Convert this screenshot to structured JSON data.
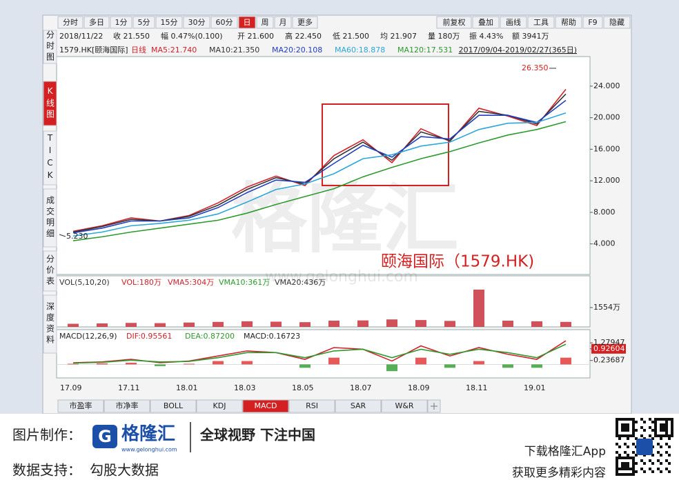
{
  "toolbar": {
    "left": [
      "分时",
      "多日",
      "1分",
      "5分",
      "15分",
      "30分",
      "60分",
      "日",
      "周",
      "月",
      "更多"
    ],
    "active": 7,
    "right": [
      "前复权",
      "叠加",
      "画线",
      "工具",
      "帮助",
      "F9",
      "隐藏"
    ]
  },
  "info": [
    "2018/11/22",
    "收 21.550",
    "幅 0.47%(0.100)",
    "开 21.600",
    "高 22.450",
    "低 21.500",
    "均 21.907",
    "量 180万",
    "振 4.43%",
    "额 3941万"
  ],
  "sidebar": {
    "items": [
      "分时图",
      "K线图",
      "TICK",
      "成交明细",
      "分价表",
      "深度资料"
    ],
    "active": 1
  },
  "chart_data": [
    {
      "type": "line",
      "symbol": "1579.HK[颐海国际]",
      "period": "日线",
      "range": "2017/09/04-2019/02/27(365日)",
      "title": "颐海国际（1579.HK)",
      "high_label": "26.350",
      "low_label": "5.230",
      "categories": [
        "17.09",
        null,
        "17.11",
        null,
        "18.01",
        null,
        "18.03",
        null,
        "18.05",
        null,
        "18.07",
        null,
        "18.09",
        null,
        "18.11",
        null,
        "19.01",
        null
      ],
      "series": [
        {
          "name": "MA5:21.740",
          "color": "#d0202a",
          "values": [
            5.6,
            6.3,
            7.3,
            6.9,
            7.6,
            9.2,
            11.2,
            12.6,
            11.4,
            15.2,
            17.2,
            14.3,
            18.6,
            17.0,
            21.2,
            20.2,
            19.0,
            23.6
          ]
        },
        {
          "name": "MA10:21.350",
          "color": "#333333",
          "values": [
            5.5,
            6.2,
            7.1,
            6.9,
            7.5,
            8.9,
            10.9,
            12.4,
            11.6,
            14.8,
            16.9,
            14.6,
            18.2,
            17.1,
            20.8,
            20.3,
            19.2,
            23.0
          ]
        },
        {
          "name": "MA20:20.108",
          "color": "#1f3fbf",
          "values": [
            5.4,
            6.0,
            6.9,
            6.9,
            7.3,
            8.6,
            10.5,
            12.1,
            11.8,
            14.2,
            16.5,
            15.0,
            17.6,
            17.3,
            20.3,
            20.3,
            19.4,
            22.2
          ]
        },
        {
          "name": "MA60:18.878",
          "color": "#2aa6d8",
          "values": [
            5.0,
            5.5,
            6.3,
            6.6,
            7.0,
            7.8,
            9.3,
            10.9,
            11.6,
            12.9,
            14.8,
            15.3,
            16.4,
            16.9,
            18.5,
            19.3,
            19.4,
            20.6
          ]
        },
        {
          "name": "MA120:17.531",
          "color": "#2c9a2c",
          "values": [
            4.4,
            4.9,
            5.5,
            6.0,
            6.5,
            7.0,
            7.9,
            9.0,
            10.0,
            11.0,
            12.5,
            13.7,
            14.8,
            15.7,
            16.8,
            17.8,
            18.5,
            19.5
          ]
        }
      ],
      "ylim": [
        0.3,
        27.4
      ],
      "yticks": [
        {
          "value": 4,
          "label": "4.000"
        },
        {
          "value": 8,
          "label": "8.000"
        },
        {
          "value": 12,
          "label": "12.000"
        },
        {
          "value": 16,
          "label": "16.000"
        },
        {
          "value": 20,
          "label": "20.000"
        },
        {
          "value": 24,
          "label": "24.000"
        }
      ]
    },
    {
      "type": "bar",
      "legend": [
        "VOL(5,10,20)",
        "VOL:180万",
        "VMA5:304万",
        "VMA10:361万",
        "VMA20:436万"
      ],
      "legend_colors": [
        "#333333",
        "#d0202a",
        "#d0202a",
        "#2c9a2c",
        "#333333"
      ],
      "values": [
        250,
        280,
        320,
        300,
        350,
        400,
        450,
        420,
        380,
        500,
        520,
        600,
        550,
        480,
        3000,
        500,
        450,
        400
      ],
      "color": "#c8323c",
      "ylim": [
        0,
        3885
      ],
      "yticks": [
        {
          "value": 1554,
          "label": "1554万"
        }
      ]
    },
    {
      "type": "line",
      "legend": "MACD(12,26,9)",
      "series": [
        {
          "name": "DIF:0.95561",
          "color": "#d0202a",
          "values": [
            0.1,
            0.15,
            0.3,
            0.1,
            0.2,
            0.5,
            0.8,
            0.7,
            0.3,
            1.0,
            0.9,
            0.2,
            1.1,
            0.5,
            1.0,
            0.6,
            0.3,
            1.4
          ]
        },
        {
          "name": "DEA:0.87200",
          "color": "#2c9a2c",
          "values": [
            0.08,
            0.12,
            0.25,
            0.15,
            0.18,
            0.4,
            0.7,
            0.7,
            0.4,
            0.8,
            0.9,
            0.4,
            0.9,
            0.6,
            0.9,
            0.7,
            0.4,
            1.2
          ]
        }
      ],
      "bars": {
        "name": "MACD:0.16723",
        "up_color": "#e03030",
        "down_color": "#2c9a2c",
        "values": [
          0.04,
          0.06,
          0.1,
          -0.1,
          0.04,
          0.2,
          0.2,
          0,
          -0.2,
          0.4,
          0,
          -0.4,
          0.4,
          -0.2,
          0.2,
          -0.2,
          -0.2,
          0.4
        ]
      },
      "ylim": [
        -0.8,
        1.9
      ],
      "yticks": [
        0.23687,
        0.92604,
        1.27947
      ],
      "highlight_tick": 1
    }
  ],
  "bottom_tabs": {
    "items": [
      "市盈率",
      "市净率",
      "BOLL",
      "KDJ",
      "MACD",
      "RSI",
      "SAR",
      "W&R"
    ],
    "active": 4
  },
  "watermark": {
    "title": "格隆汇",
    "url": "www.gelonghui.com"
  },
  "footer": {
    "made_by": "图片制作：",
    "logo": "格隆汇",
    "logo_url": "www.gelonghui.com",
    "slogan": "全球视野 下注中国",
    "data_by": "数据支持：",
    "data_source": "勾股大数据",
    "download": "下载格隆汇App",
    "more": "获取更多精彩内容"
  }
}
